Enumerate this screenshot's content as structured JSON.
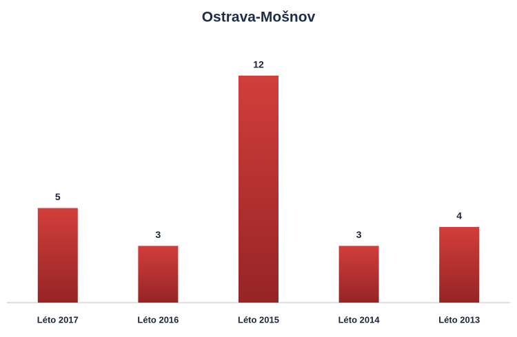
{
  "chart_data": {
    "type": "bar",
    "title": "Ostrava-Mošnov",
    "categories": [
      "Léto 2017",
      "Léto 2016",
      "Léto 2015",
      "Léto 2014",
      "Léto 2013"
    ],
    "values": [
      5,
      3,
      12,
      3,
      4
    ],
    "color": "#d23e3b"
  }
}
